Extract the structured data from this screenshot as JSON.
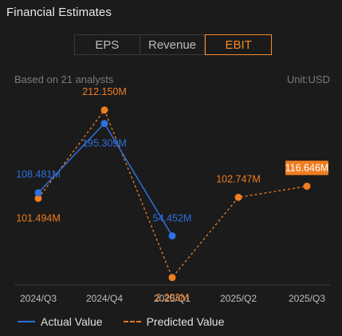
{
  "header": {
    "title": "Financial Estimates"
  },
  "tabs": [
    {
      "label": "EPS",
      "active": false
    },
    {
      "label": "Revenue",
      "active": false
    },
    {
      "label": "EBIT",
      "active": true
    }
  ],
  "meta": {
    "analysts": "Based on 21 analysts",
    "unit": "Unit:USD"
  },
  "colors": {
    "actual": "#2f6fe0",
    "predicted": "#f07d20",
    "highlight_bg": "#f07d20",
    "axis": "#3a3a3a",
    "tick_text": "#bdbdbd"
  },
  "chart_data": {
    "type": "line",
    "categories": [
      "2024/Q3",
      "2024/Q4",
      "2025/Q1",
      "2025/Q2",
      "2025/Q3"
    ],
    "ylim": [
      0,
      230
    ],
    "series": [
      {
        "name": "Actual Value",
        "values": [
          108.481,
          195.309,
          54.452,
          null,
          null
        ],
        "labels": [
          "108.481M",
          "195.309M",
          "54.452M",
          "",
          ""
        ]
      },
      {
        "name": "Predicted Value",
        "values": [
          101.494,
          212.15,
          2.203,
          102.747,
          116.646
        ],
        "labels": [
          "101.494M",
          "212.150M",
          "2.203M",
          "102.747M",
          "116.646M"
        ],
        "highlighted_index": 4
      }
    ]
  },
  "legend": {
    "actual_label": "Actual Value",
    "predicted_label": "Predicted Value"
  }
}
